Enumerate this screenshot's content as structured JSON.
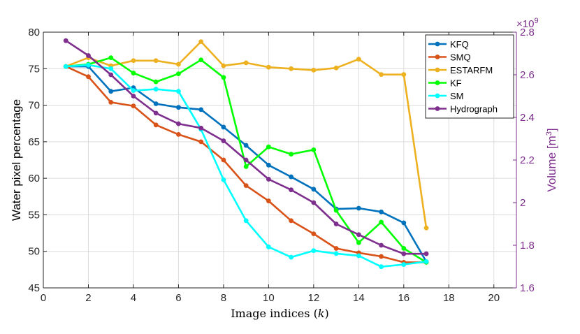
{
  "chart_data": {
    "type": "line",
    "xlabel": "Image indices (k)",
    "ylabel": "Water pixel percentage",
    "y2label": "Volume [m³]",
    "y2_exponent_label": "×10⁹",
    "xlim": [
      0,
      21
    ],
    "ylim": [
      45,
      80
    ],
    "y2lim": [
      1.6,
      2.8
    ],
    "x_ticks": [
      0,
      2,
      4,
      6,
      8,
      10,
      12,
      14,
      16,
      18,
      20
    ],
    "y_ticks": [
      45,
      50,
      55,
      60,
      65,
      70,
      75,
      80
    ],
    "y2_ticks": [
      1.6,
      1.8,
      2,
      2.2,
      2.4,
      2.6,
      2.8
    ],
    "grid": true,
    "legend_position": "top-right",
    "x": [
      1,
      2,
      3,
      4,
      5,
      6,
      7,
      8,
      9,
      10,
      11,
      12,
      13,
      14,
      15,
      16,
      17
    ],
    "series": [
      {
        "name": "KFQ",
        "color": "#0072bd",
        "axis": "left",
        "values": [
          75.3,
          75.3,
          71.9,
          72.4,
          70.2,
          69.7,
          69.4,
          67.0,
          64.5,
          61.8,
          60.2,
          58.5,
          55.8,
          55.9,
          55.4,
          53.9,
          48.6
        ]
      },
      {
        "name": "SMQ",
        "color": "#d95319",
        "axis": "left",
        "values": [
          75.3,
          73.9,
          70.4,
          69.9,
          67.3,
          66.0,
          65.0,
          62.5,
          59.0,
          56.9,
          54.2,
          52.4,
          50.4,
          49.8,
          49.3,
          48.5,
          48.5
        ]
      },
      {
        "name": "ESTARFM",
        "color": "#edb120",
        "axis": "left",
        "values": [
          75.3,
          76.5,
          75.4,
          76.1,
          76.1,
          75.6,
          78.7,
          75.4,
          75.8,
          75.2,
          75.0,
          74.8,
          75.1,
          76.3,
          74.2,
          74.2,
          53.2
        ]
      },
      {
        "name": "KF",
        "color": "#00ff00",
        "axis": "left",
        "values": [
          75.3,
          75.6,
          76.5,
          74.4,
          73.2,
          74.3,
          76.2,
          73.8,
          61.6,
          64.3,
          63.3,
          63.9,
          55.6,
          51.2,
          54.0,
          50.4,
          48.5
        ]
      },
      {
        "name": "SM",
        "color": "#00ffff",
        "axis": "left",
        "values": [
          75.3,
          75.5,
          75.0,
          72.0,
          72.2,
          71.9,
          66.7,
          59.8,
          54.2,
          50.6,
          49.2,
          50.1,
          49.7,
          49.4,
          47.9,
          48.2,
          48.6
        ]
      },
      {
        "name": "Hydrograph",
        "color": "#7e2f8e",
        "axis": "right",
        "values": [
          2.76,
          2.69,
          2.6,
          2.5,
          2.42,
          2.37,
          2.35,
          2.29,
          2.2,
          2.11,
          2.06,
          2.0,
          1.9,
          1.85,
          1.8,
          1.76,
          1.76
        ]
      }
    ]
  }
}
